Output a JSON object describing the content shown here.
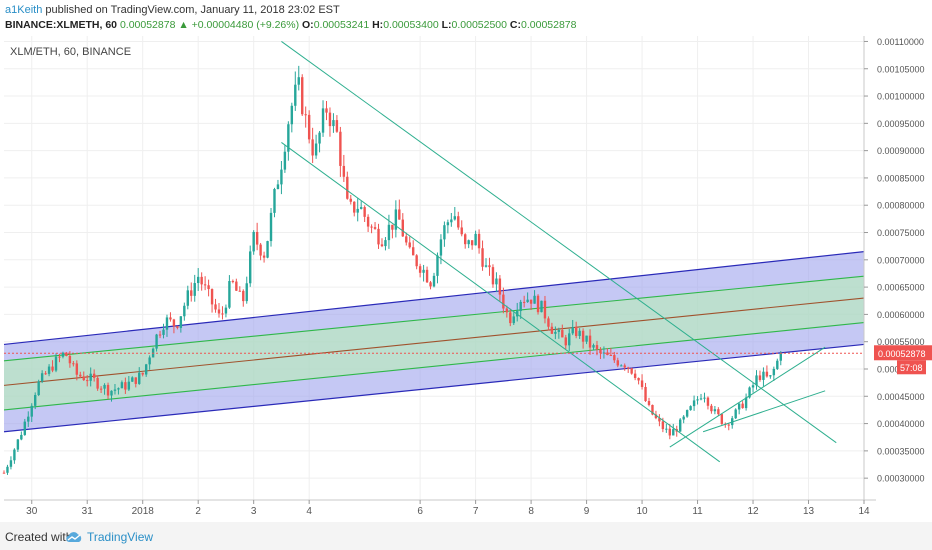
{
  "header": {
    "author": "a1Keith",
    "published": "published on TradingView.com, January 11, 2018 23:02 EST",
    "symbol": "BINANCE:XLMETH, 60",
    "open_label": "O:",
    "open": "0.00053241",
    "high_label": "H:",
    "high": "0.00053400",
    "low_label": "L:",
    "low": "0.00052500",
    "close_label": "C:",
    "close": "0.00052878",
    "last": "0.00052878",
    "change": "+0.00004480 (+9.26%)",
    "change_icon": "triangle-up-icon"
  },
  "footer": {
    "created_with": "Created with",
    "brand": "TradingView",
    "logo_icon": "tradingview-cloud-icon"
  },
  "colors": {
    "up": "#26a69a",
    "down": "#ef5350",
    "outer_channel_fill": "#9fa3ec",
    "inner_channel_fill": "#b8efb5",
    "outer_channel_line": "#2a2ab8",
    "inner_channel_line": "#2fb74a",
    "median_line": "#a0522d",
    "trend_line": "#2eaf8f",
    "price_line": "#ef5350"
  },
  "chart_data": {
    "type": "candlestick",
    "title": "XLM/ETH, 60, BINANCE",
    "price_axis": {
      "side": "right",
      "range": [
        0.00026,
        0.00111
      ],
      "ticks": [
        "0.00030000",
        "0.00035000",
        "0.00040000",
        "0.00045000",
        "0.00050000",
        "0.00055000",
        "0.00060000",
        "0.00065000",
        "0.00070000",
        "0.00075000",
        "0.00080000",
        "0.00085000",
        "0.00090000",
        "0.00095000",
        "0.00100000",
        "0.00105000",
        "0.00110000"
      ],
      "last_price_label": "0.00052878",
      "countdown_label": "57:08"
    },
    "time_axis": {
      "range": [
        0,
        15.5
      ],
      "ticks": [
        {
          "t": 0.5,
          "label": "30"
        },
        {
          "t": 1.5,
          "label": "31"
        },
        {
          "t": 2.5,
          "label": "2018"
        },
        {
          "t": 3.5,
          "label": "2"
        },
        {
          "t": 4.5,
          "label": "3"
        },
        {
          "t": 5.5,
          "label": "4"
        },
        {
          "t": 7.5,
          "label": "6"
        },
        {
          "t": 8.5,
          "label": "7"
        },
        {
          "t": 9.5,
          "label": "8"
        },
        {
          "t": 10.5,
          "label": "9"
        },
        {
          "t": 11.5,
          "label": "10"
        },
        {
          "t": 12.5,
          "label": "11"
        },
        {
          "t": 13.5,
          "label": "12"
        },
        {
          "t": 14.5,
          "label": "13"
        },
        {
          "t": 15.5,
          "label": "14"
        }
      ]
    },
    "price_path": [
      [
        0.0,
        0.00031
      ],
      [
        0.3,
        0.00038
      ],
      [
        0.6,
        0.00047
      ],
      [
        0.9,
        0.00051
      ],
      [
        1.1,
        0.00053
      ],
      [
        1.3,
        0.00049
      ],
      [
        1.6,
        0.00048
      ],
      [
        1.9,
        0.00046
      ],
      [
        2.2,
        0.00047
      ],
      [
        2.5,
        0.00049
      ],
      [
        2.7,
        0.00055
      ],
      [
        2.9,
        0.00059
      ],
      [
        3.1,
        0.00058
      ],
      [
        3.3,
        0.00063
      ],
      [
        3.5,
        0.00067
      ],
      [
        3.7,
        0.00063
      ],
      [
        3.9,
        0.00059
      ],
      [
        4.1,
        0.00066
      ],
      [
        4.3,
        0.00062
      ],
      [
        4.5,
        0.00074
      ],
      [
        4.7,
        0.00071
      ],
      [
        4.9,
        0.00083
      ],
      [
        5.0,
        0.00088
      ],
      [
        5.15,
        0.00097
      ],
      [
        5.3,
        0.00102
      ],
      [
        5.45,
        0.00095
      ],
      [
        5.6,
        0.00089
      ],
      [
        5.8,
        0.00098
      ],
      [
        6.0,
        0.00093
      ],
      [
        6.2,
        0.00079
      ],
      [
        6.4,
        0.0008
      ],
      [
        6.6,
        0.00076
      ],
      [
        6.8,
        0.00074
      ],
      [
        7.1,
        0.00078
      ],
      [
        7.3,
        0.00071
      ],
      [
        7.5,
        0.00069
      ],
      [
        7.7,
        0.00066
      ],
      [
        7.9,
        0.00075
      ],
      [
        8.1,
        0.00079
      ],
      [
        8.3,
        0.00072
      ],
      [
        8.5,
        0.00074
      ],
      [
        8.7,
        0.00068
      ],
      [
        8.9,
        0.00065
      ],
      [
        9.1,
        0.00059
      ],
      [
        9.3,
        0.00063
      ],
      [
        9.5,
        0.00063
      ],
      [
        9.7,
        0.00061
      ],
      [
        9.9,
        0.00057
      ],
      [
        10.1,
        0.00055
      ],
      [
        10.3,
        0.00057
      ],
      [
        10.5,
        0.00055
      ],
      [
        10.7,
        0.00053
      ],
      [
        10.9,
        0.00052
      ],
      [
        11.2,
        0.00051
      ],
      [
        11.4,
        0.00049
      ],
      [
        11.6,
        0.00043
      ],
      [
        11.8,
        0.0004
      ],
      [
        12.0,
        0.00038
      ],
      [
        12.2,
        0.0004
      ],
      [
        12.4,
        0.00043
      ],
      [
        12.6,
        0.00046
      ],
      [
        12.8,
        0.00042
      ],
      [
        13.0,
        0.0004
      ],
      [
        13.2,
        0.00042
      ],
      [
        13.4,
        0.00045
      ],
      [
        13.6,
        0.00049
      ],
      [
        13.8,
        0.00048
      ],
      [
        14.0,
        0.00052878
      ]
    ],
    "drawings": {
      "outer_channel": {
        "upper": [
          [
            0.0,
            0.000545
          ],
          [
            15.5,
            0.000715
          ]
        ],
        "lower": [
          [
            0.0,
            0.000385
          ],
          [
            15.5,
            0.000545
          ]
        ]
      },
      "inner_channel": {
        "upper": [
          [
            0.0,
            0.000515
          ],
          [
            15.5,
            0.00067
          ]
        ],
        "lower": [
          [
            0.0,
            0.000425
          ],
          [
            15.5,
            0.000585
          ]
        ]
      },
      "median": [
        [
          0.0,
          0.00047
        ],
        [
          15.5,
          0.00063
        ]
      ],
      "trend_lines": [
        [
          [
            5.0,
            0.0011
          ],
          [
            15.0,
            0.000365
          ]
        ],
        [
          [
            5.0,
            0.000915
          ],
          [
            12.9,
            0.00033
          ]
        ],
        [
          [
            12.0,
            0.000357
          ],
          [
            14.8,
            0.00054
          ]
        ],
        [
          [
            12.6,
            0.000385
          ],
          [
            14.8,
            0.00046
          ]
        ]
      ]
    }
  }
}
